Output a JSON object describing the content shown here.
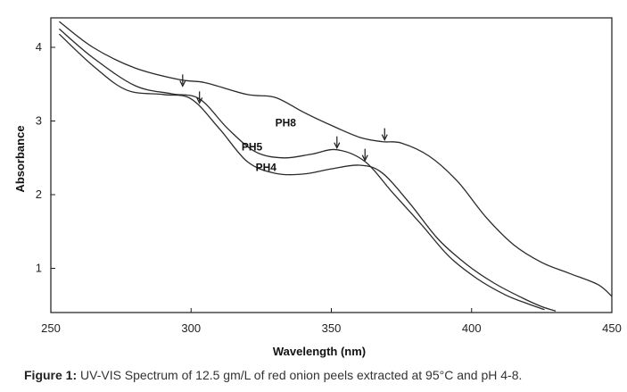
{
  "chart_data": {
    "type": "line",
    "title": "",
    "xlabel": "Wavelength (nm)",
    "ylabel": "Absorbance",
    "xlim": [
      250,
      450
    ],
    "ylim": [
      0.4,
      4.4
    ],
    "x_ticks": [
      250,
      300,
      350,
      400,
      450
    ],
    "y_ticks": [
      1,
      2,
      3,
      4
    ],
    "grid": false,
    "legend": "inline labels",
    "series": [
      {
        "name": "PH8",
        "label_anchor": [
          330,
          2.93
        ],
        "peak_arrows": [
          [
            297,
            3.45
          ],
          [
            369,
            2.72
          ]
        ],
        "points": [
          [
            253,
            4.35
          ],
          [
            265,
            4.0
          ],
          [
            280,
            3.72
          ],
          [
            296,
            3.56
          ],
          [
            305,
            3.52
          ],
          [
            320,
            3.36
          ],
          [
            330,
            3.32
          ],
          [
            340,
            3.12
          ],
          [
            350,
            2.94
          ],
          [
            360,
            2.78
          ],
          [
            368,
            2.72
          ],
          [
            375,
            2.7
          ],
          [
            385,
            2.52
          ],
          [
            395,
            2.18
          ],
          [
            405,
            1.7
          ],
          [
            415,
            1.32
          ],
          [
            425,
            1.08
          ],
          [
            435,
            0.93
          ],
          [
            445,
            0.78
          ],
          [
            450,
            0.62
          ]
        ]
      },
      {
        "name": "PH5",
        "label_anchor": [
          318,
          2.6
        ],
        "peak_arrows": [
          [
            303,
            3.22
          ],
          [
            352,
            2.61
          ]
        ],
        "points": [
          [
            253,
            4.25
          ],
          [
            265,
            3.86
          ],
          [
            280,
            3.48
          ],
          [
            293,
            3.37
          ],
          [
            303,
            3.3
          ],
          [
            313,
            2.9
          ],
          [
            323,
            2.58
          ],
          [
            333,
            2.5
          ],
          [
            343,
            2.55
          ],
          [
            352,
            2.61
          ],
          [
            362,
            2.45
          ],
          [
            372,
            2.02
          ],
          [
            382,
            1.6
          ],
          [
            392,
            1.16
          ],
          [
            402,
            0.86
          ],
          [
            412,
            0.64
          ],
          [
            420,
            0.52
          ],
          [
            426,
            0.44
          ]
        ]
      },
      {
        "name": "PH4",
        "label_anchor": [
          323,
          2.32
        ],
        "peak_arrows": [
          [
            362,
            2.44
          ]
        ],
        "points": [
          [
            253,
            4.18
          ],
          [
            265,
            3.75
          ],
          [
            277,
            3.42
          ],
          [
            290,
            3.36
          ],
          [
            300,
            3.3
          ],
          [
            310,
            2.9
          ],
          [
            320,
            2.45
          ],
          [
            330,
            2.29
          ],
          [
            340,
            2.28
          ],
          [
            350,
            2.35
          ],
          [
            360,
            2.4
          ],
          [
            368,
            2.3
          ],
          [
            378,
            1.88
          ],
          [
            388,
            1.4
          ],
          [
            398,
            1.06
          ],
          [
            408,
            0.8
          ],
          [
            418,
            0.6
          ],
          [
            425,
            0.48
          ],
          [
            430,
            0.42
          ]
        ]
      }
    ]
  },
  "caption": {
    "prefix": "Figure 1:",
    "text": " UV-VIS Spectrum of 12.5 gm/L of red onion peels extracted at 95°C and pH 4-8."
  }
}
